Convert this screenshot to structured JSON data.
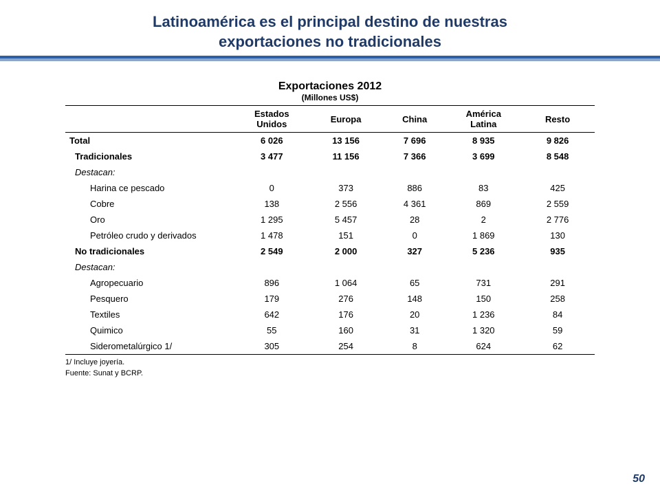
{
  "slide": {
    "title_line1": "Latinoamérica es el principal destino de nuestras",
    "title_line2": "exportaciones no tradicionales",
    "page_number": "50"
  },
  "table": {
    "title": "Exportaciones 2012",
    "subtitle": "(Millones US$)",
    "columns": [
      "",
      "Estados Unidos",
      "Europa",
      "China",
      "América Latina",
      "Resto"
    ],
    "rows": [
      {
        "style": "bold",
        "indent": 0,
        "cells": [
          "Total",
          "6 026",
          "13 156",
          "7 696",
          "8 935",
          "9 826"
        ]
      },
      {
        "style": "bold",
        "indent": 1,
        "cells": [
          "Tradicionales",
          "3 477",
          "11 156",
          "7 366",
          "3 699",
          "8 548"
        ]
      },
      {
        "style": "italic",
        "indent": 1,
        "cells": [
          "Destacan:",
          "",
          "",
          "",
          "",
          ""
        ]
      },
      {
        "style": "",
        "indent": 2,
        "cells": [
          "Harina ce pescado",
          "0",
          "373",
          "886",
          "83",
          "425"
        ]
      },
      {
        "style": "",
        "indent": 2,
        "cells": [
          "Cobre",
          "138",
          "2 556",
          "4 361",
          "869",
          "2 559"
        ]
      },
      {
        "style": "",
        "indent": 2,
        "cells": [
          "Oro",
          "1 295",
          "5 457",
          "28",
          "2",
          "2 776"
        ]
      },
      {
        "style": "",
        "indent": 2,
        "cells": [
          "Petróleo crudo y derivados",
          "1 478",
          "151",
          "0",
          "1 869",
          "130"
        ]
      },
      {
        "style": "bold",
        "indent": 1,
        "cells": [
          "No tradicionales",
          "2 549",
          "2 000",
          "327",
          "5 236",
          "935"
        ]
      },
      {
        "style": "italic",
        "indent": 1,
        "cells": [
          "Destacan:",
          "",
          "",
          "",
          "",
          ""
        ]
      },
      {
        "style": "",
        "indent": 2,
        "cells": [
          "Agropecuario",
          "896",
          "1 064",
          "65",
          "731",
          "291"
        ]
      },
      {
        "style": "",
        "indent": 2,
        "cells": [
          "Pesquero",
          "179",
          "276",
          "148",
          "150",
          "258"
        ]
      },
      {
        "style": "",
        "indent": 2,
        "cells": [
          "Textiles",
          "642",
          "176",
          "20",
          "1 236",
          "84"
        ]
      },
      {
        "style": "",
        "indent": 2,
        "cells": [
          "Quimico",
          "55",
          "160",
          "31",
          "1 320",
          "59"
        ]
      },
      {
        "style": "",
        "indent": 2,
        "cells": [
          "Siderometalúrgico 1/",
          "305",
          "254",
          "8",
          "624",
          "62"
        ]
      }
    ],
    "footnotes": [
      "1/ Incluye joyería.",
      "Fuente: Sunat y BCRP."
    ]
  },
  "styling": {
    "title_color": "#1f3a66",
    "rule_top_color": "#2d5fa4",
    "rule_bottom_color": "#8ba6c8",
    "col_widths": [
      "32%",
      "14%",
      "14%",
      "12%",
      "14%",
      "14%"
    ]
  }
}
